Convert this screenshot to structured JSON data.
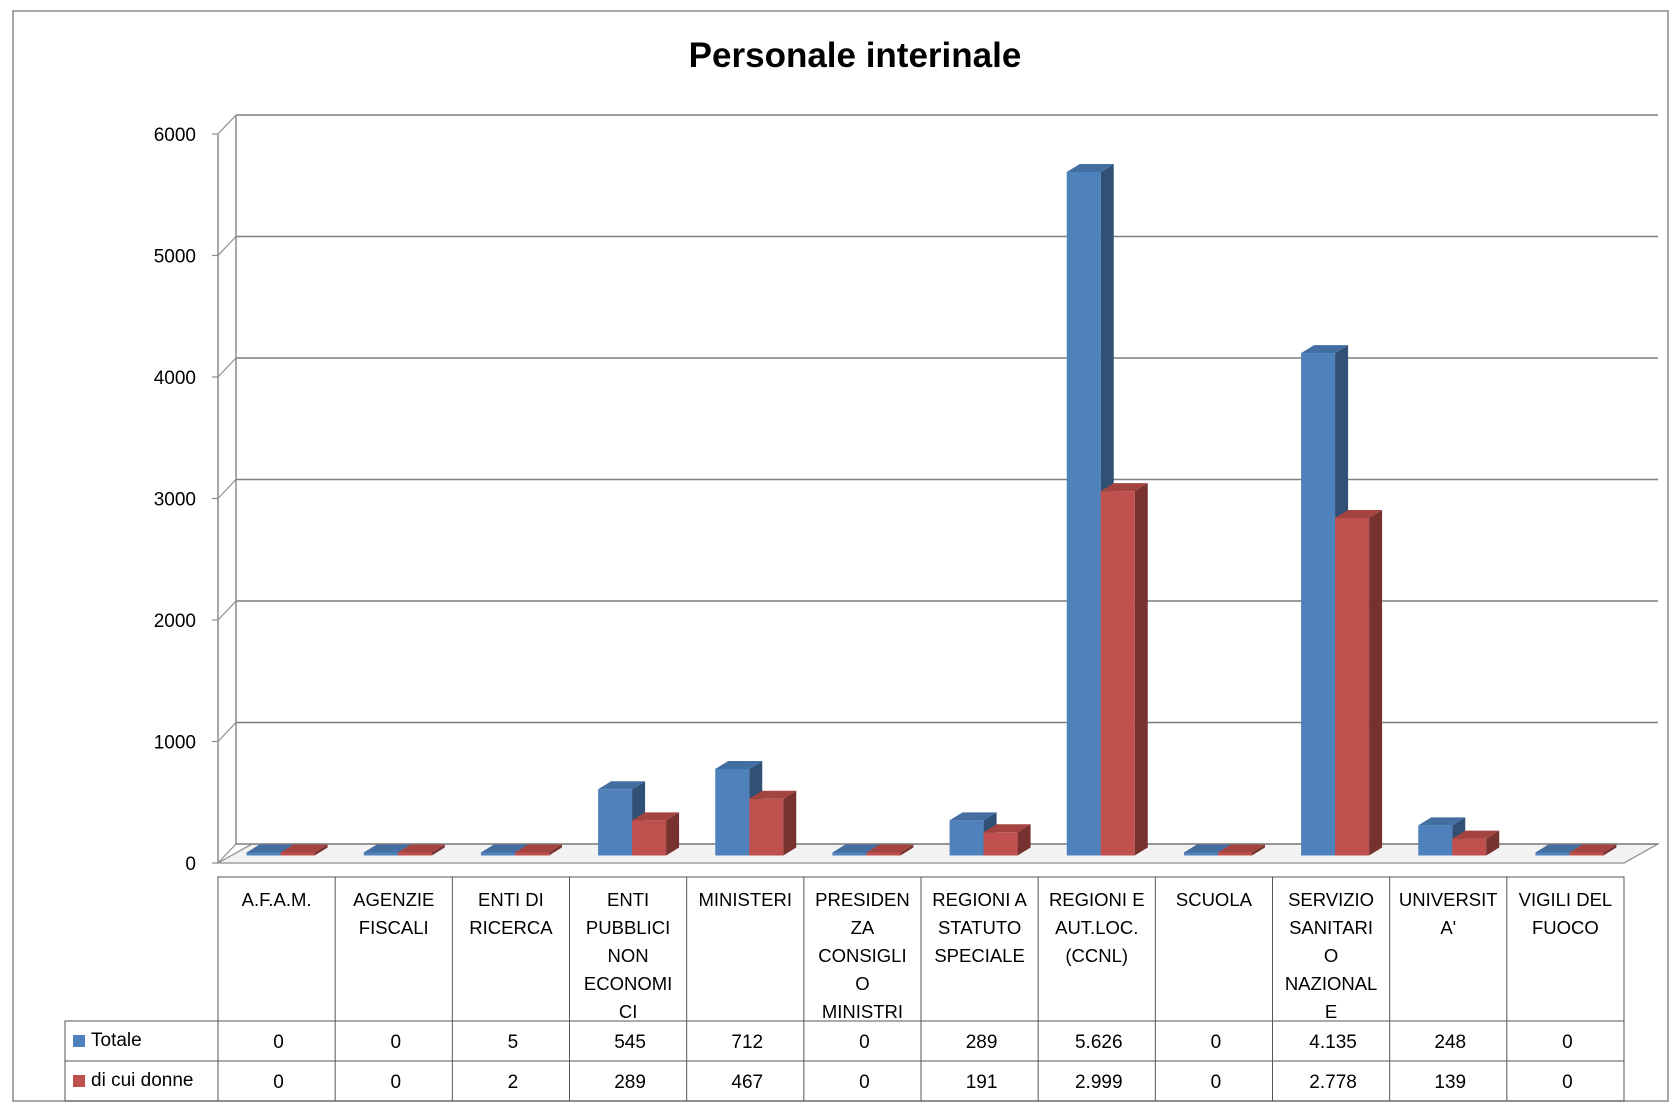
{
  "chart_data": {
    "type": "bar",
    "title": "Personale interinale",
    "xlabel": "",
    "ylabel": "",
    "ylim": [
      0,
      6000
    ],
    "yticks": [
      0,
      1000,
      2000,
      3000,
      4000,
      5000,
      6000
    ],
    "ytick_labels": [
      "0",
      "1000",
      "2000",
      "3000",
      "4000",
      "5000",
      "6000"
    ],
    "grid": true,
    "legend_position": "left of data table",
    "categories": [
      "A.F.A.M.",
      "AGENZIE FISCALI",
      "ENTI DI RICERCA",
      "ENTI PUBBLICI NON ECONOMICI",
      "MINISTERI",
      "PRESIDENZA CONSIGLIO MINISTRI",
      "REGIONI A STATUTO SPECIALE",
      "REGIONI E AUT.LOC. (CCNL)",
      "SCUOLA",
      "SERVIZIO SANITARIO NAZIONALE",
      "UNIVERSITA'",
      "VIGILI DEL FUOCO"
    ],
    "category_label_lines": [
      [
        "A.F.A.M."
      ],
      [
        "AGENZIE",
        "FISCALI"
      ],
      [
        "ENTI DI",
        "RICERCA"
      ],
      [
        "ENTI",
        "PUBBLICI",
        "NON",
        "ECONOMI",
        "CI"
      ],
      [
        "MINISTERI"
      ],
      [
        "PRESIDEN",
        "ZA",
        "CONSIGLI",
        "O",
        "MINISTRI"
      ],
      [
        "REGIONI A",
        "STATUTO",
        "SPECIALE"
      ],
      [
        "REGIONI E",
        "AUT.LOC.",
        "(CCNL)"
      ],
      [
        "SCUOLA"
      ],
      [
        "SERVIZIO",
        "SANITARI",
        "O",
        "NAZIONAL",
        "E"
      ],
      [
        "UNIVERSIT",
        "A'"
      ],
      [
        "VIGILI DEL",
        "FUOCO"
      ]
    ],
    "series": [
      {
        "name": "Totale",
        "color": "#4F81BD",
        "values": [
          0,
          0,
          5,
          545,
          712,
          0,
          289,
          5626,
          0,
          4135,
          248,
          0
        ],
        "display_values": [
          "0",
          "0",
          "5",
          "545",
          "712",
          "0",
          "289",
          "5.626",
          "0",
          "4.135",
          "248",
          "0"
        ]
      },
      {
        "name": "di cui donne",
        "color": "#C0504D",
        "values": [
          0,
          0,
          2,
          289,
          467,
          0,
          191,
          2999,
          0,
          2778,
          139,
          0
        ],
        "display_values": [
          "0",
          "0",
          "2",
          "289",
          "467",
          "0",
          "191",
          "2.999",
          "0",
          "2.778",
          "139",
          "0"
        ]
      }
    ]
  }
}
